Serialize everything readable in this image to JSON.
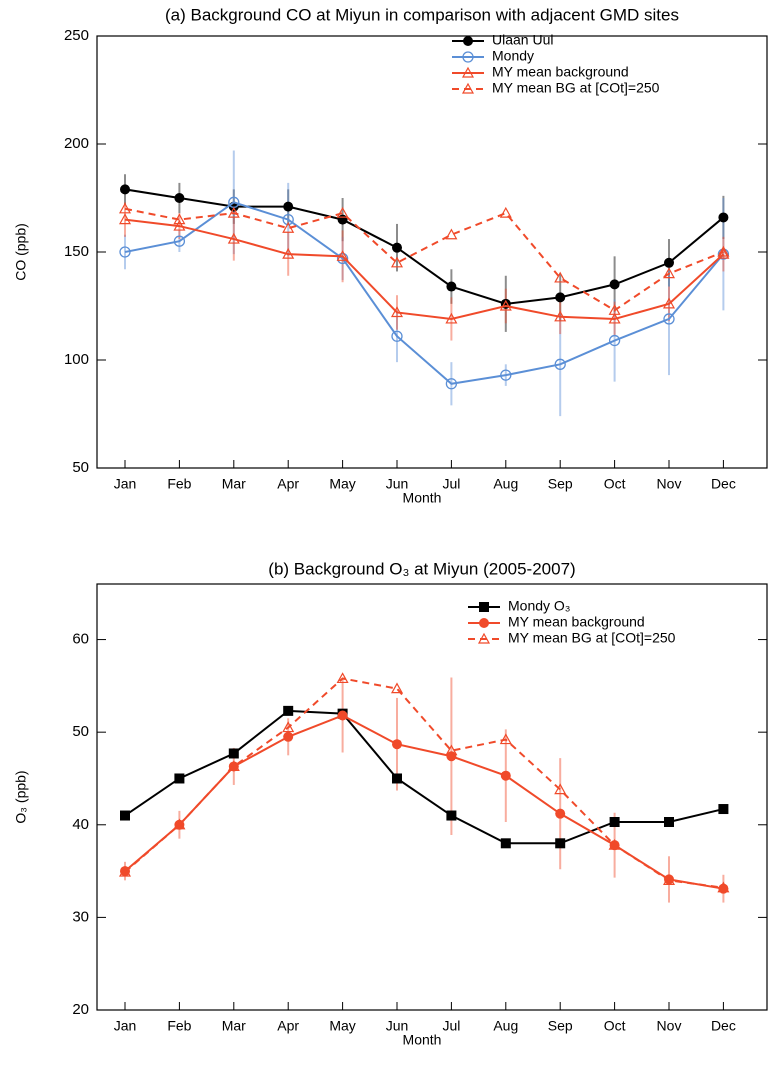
{
  "chart_data": [
    {
      "type": "line",
      "title": "(a) Background CO at Miyun in comparison with adjacent GMD sites",
      "x_label": "Month",
      "y_label": "CO (ppb)",
      "categories": [
        "Jan",
        "Feb",
        "Mar",
        "Apr",
        "May",
        "Jun",
        "Jul",
        "Aug",
        "Sep",
        "Oct",
        "Nov",
        "Dec"
      ],
      "ylim": [
        50,
        250
      ],
      "yticks": [
        50,
        100,
        150,
        200,
        250
      ],
      "series": [
        {
          "name": "Ulaan Uul",
          "color": "#000000",
          "marker": "circle",
          "dashed": false,
          "values": [
            179,
            175,
            171,
            171,
            165,
            152,
            134,
            126,
            129,
            135,
            145,
            166
          ],
          "errors": [
            7,
            7,
            8,
            8,
            10,
            11,
            8,
            13,
            11,
            13,
            11,
            10
          ]
        },
        {
          "name": "Mondy",
          "color": "#5b8fd6",
          "marker": "circle-open",
          "dashed": false,
          "values": [
            150,
            155,
            173,
            165,
            147,
            111,
            89,
            93,
            98,
            109,
            119,
            149
          ],
          "errors": [
            8,
            5,
            24,
            17,
            10,
            12,
            10,
            5,
            24,
            19,
            26,
            26
          ]
        },
        {
          "name": "MY mean background",
          "color": "#f04a2a",
          "marker": "triangle-open",
          "dashed": false,
          "values": [
            165,
            162,
            156,
            149,
            148,
            122,
            119,
            125,
            120,
            119,
            126,
            149
          ],
          "errors": [
            8,
            6,
            10,
            10,
            12,
            8,
            10,
            8,
            8,
            8,
            8,
            8
          ]
        },
        {
          "name": "MY mean BG at [COt]=250",
          "color": "#f04a2a",
          "marker": "triangle-open",
          "dashed": true,
          "values": [
            170,
            165,
            168,
            161,
            168,
            145,
            158,
            168,
            138,
            123,
            140,
            150
          ]
        }
      ]
    },
    {
      "type": "line",
      "title": "(b) Background O₃ at Miyun (2005-2007)",
      "x_label": "Month",
      "y_label": "O₃ (ppb)",
      "categories": [
        "Jan",
        "Feb",
        "Mar",
        "Apr",
        "May",
        "Jun",
        "Jul",
        "Aug",
        "Sep",
        "Oct",
        "Nov",
        "Dec"
      ],
      "ylim": [
        20,
        66
      ],
      "yticks": [
        20,
        30,
        40,
        50,
        60
      ],
      "series": [
        {
          "name": "Mondy O₃",
          "color": "#000000",
          "marker": "square",
          "dashed": false,
          "values": [
            41,
            45,
            47.7,
            52.3,
            52,
            45,
            41,
            38,
            38,
            40.3,
            40.3,
            41.7
          ]
        },
        {
          "name": "MY mean background",
          "color": "#f04a2a",
          "marker": "circle",
          "dashed": false,
          "values": [
            35,
            40,
            46.3,
            49.5,
            51.8,
            48.7,
            47.4,
            45.3,
            41.2,
            37.8,
            34.1,
            33.1
          ],
          "errors": [
            1,
            1.5,
            2,
            2,
            4,
            5,
            8.5,
            5,
            6,
            3.5,
            2.5,
            1.5
          ]
        },
        {
          "name": "MY mean BG at [COt]=250",
          "color": "#f04a2a",
          "marker": "triangle-open",
          "dashed": true,
          "values": [
            34.9,
            40,
            46.3,
            50.5,
            55.8,
            54.7,
            48,
            49.2,
            43.8,
            37.8,
            34,
            33.2
          ]
        }
      ]
    }
  ]
}
